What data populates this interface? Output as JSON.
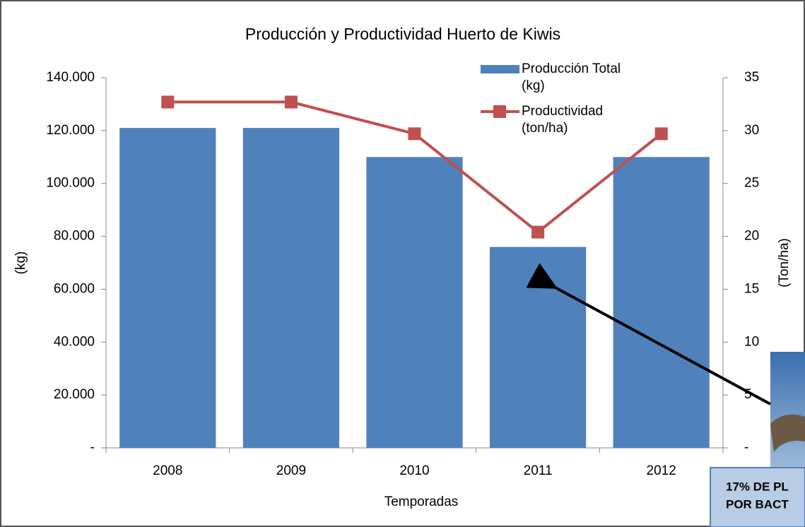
{
  "chart_data": {
    "type": "bar_line",
    "title": "Producción y Productividad Huerto de Kiwis",
    "x_label": "Temporadas",
    "y_label": "(kg)",
    "y2_label": "(Ton/ha)",
    "categories": [
      "2008",
      "2009",
      "2010",
      "2011",
      "2012"
    ],
    "series": [
      {
        "name": "Producción Total (kg)",
        "type": "bar",
        "color": "#4f81bd",
        "values": [
          121000,
          121000,
          110000,
          76000,
          110000
        ]
      },
      {
        "name": "Productividad (ton/ha)",
        "type": "line",
        "axis": "y2",
        "color": "#c0504d",
        "values": [
          32.7,
          32.7,
          29.7,
          20.4,
          29.7
        ]
      }
    ],
    "ylim": [
      0,
      140000
    ],
    "yticks": [
      {
        "value": 0,
        "label": "-"
      },
      {
        "value": 20000,
        "label": "20.000"
      },
      {
        "value": 40000,
        "label": "40.000"
      },
      {
        "value": 60000,
        "label": "60.000"
      },
      {
        "value": 80000,
        "label": "80.000"
      },
      {
        "value": 100000,
        "label": "100.000"
      },
      {
        "value": 120000,
        "label": "120.000"
      },
      {
        "value": 140000,
        "label": "140.000"
      }
    ],
    "y2lim": [
      0,
      35
    ],
    "y2ticks": [
      {
        "value": 0,
        "label": "-"
      },
      5,
      10,
      15,
      20,
      25,
      30,
      35
    ],
    "annotation": [
      "17% DE PL",
      "POR BACT"
    ]
  }
}
